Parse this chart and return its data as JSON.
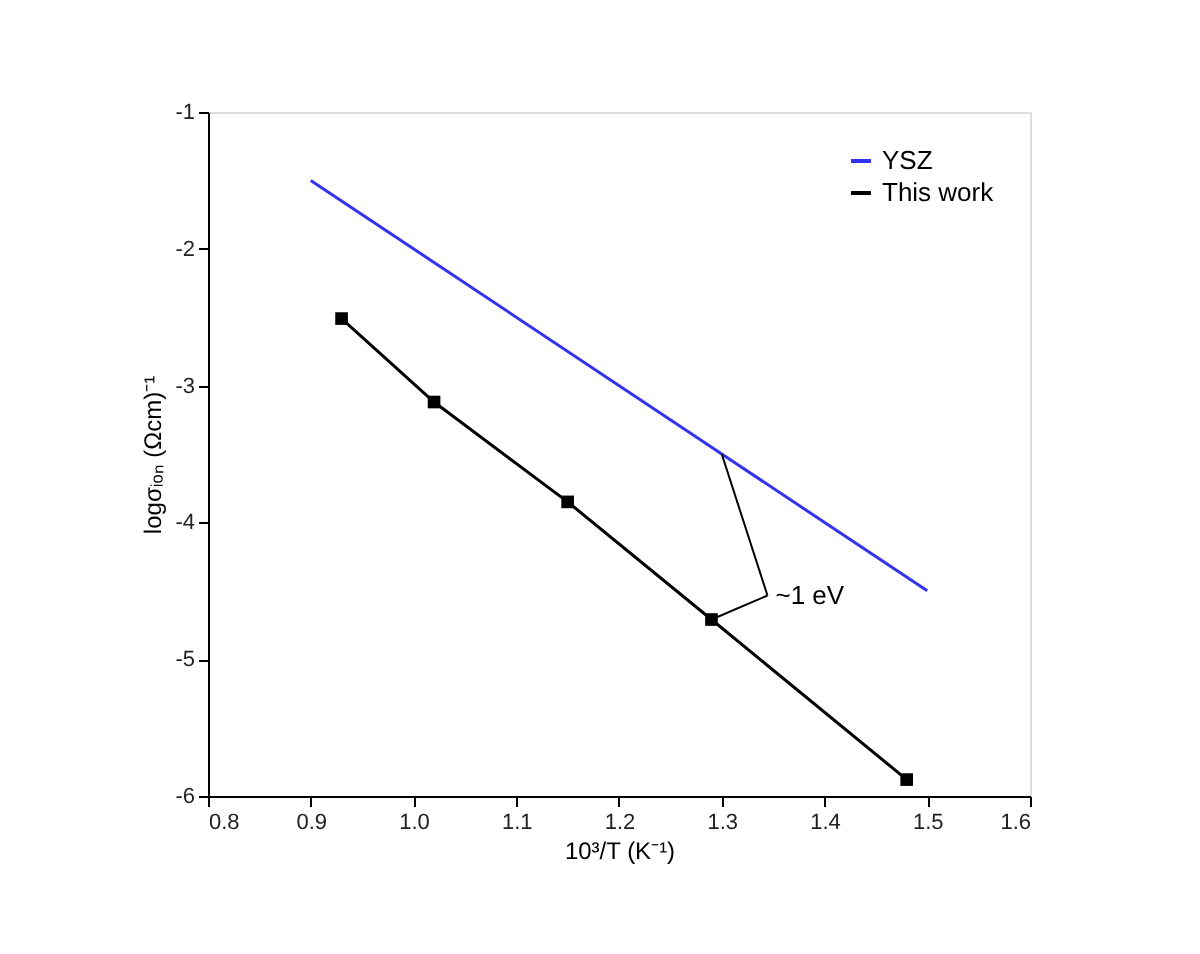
{
  "chart_data": {
    "type": "line",
    "xlabel": "10³/T (K⁻¹)",
    "ylabel": "logσᵢₒₙ (Ωcm)⁻¹",
    "xlim": [
      0.8,
      1.6
    ],
    "xticks": [
      {
        "value": 0.8,
        "label": "0.8"
      },
      {
        "value": 0.9,
        "label": "0.9"
      },
      {
        "value": 1.0,
        "label": "1.0"
      },
      {
        "value": 1.1,
        "label": "1.1"
      },
      {
        "value": 1.2,
        "label": "1.2"
      },
      {
        "value": 1.3,
        "label": "1.3"
      },
      {
        "value": 1.4,
        "label": "1.4"
      },
      {
        "value": 1.5,
        "label": "1.5"
      },
      {
        "value": 1.6,
        "label": "1.6"
      }
    ],
    "ylim": [
      -6,
      -1
    ],
    "yticks": [
      -6,
      -5,
      -4,
      -3,
      -2,
      -1
    ],
    "series": [
      {
        "name": "YSZ",
        "color": "#3333ee",
        "x": [
          0.9,
          1.3,
          1.5
        ],
        "values": [
          -1.5,
          -3.5,
          -4.5
        ],
        "marker": "none"
      },
      {
        "name": "This work",
        "color": "#000000",
        "x": [
          0.93,
          1.02,
          1.15,
          1.29,
          1.48
        ],
        "values": [
          -2.51,
          -3.12,
          -3.85,
          -4.71,
          -5.88
        ],
        "marker": "square"
      }
    ],
    "annotations": [
      {
        "text": "~1 eV",
        "x": 1.29,
        "y": -4.71
      }
    ],
    "legend": "top right",
    "grid": false
  }
}
